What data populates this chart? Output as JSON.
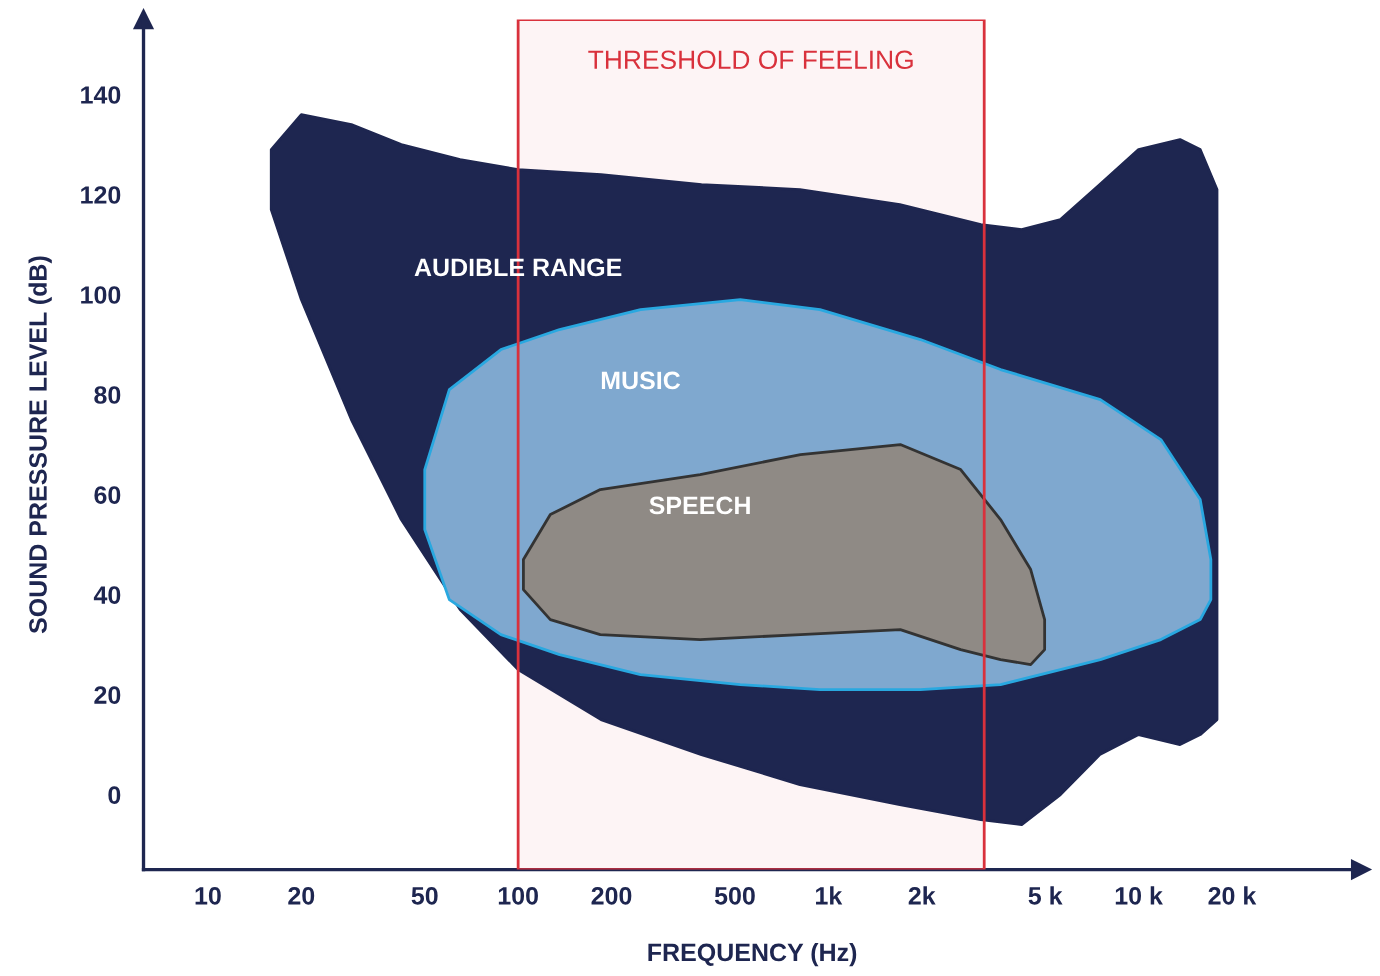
{
  "chart_data": {
    "type": "area",
    "xlabel": "FREQUENCY (Hz)",
    "ylabel": "SOUND PRESSURE LEVEL (dB)",
    "log": "x",
    "grid": false,
    "legend": false,
    "xlim": [
      6.2,
      52000
    ],
    "ylim": [
      -15,
      155
    ],
    "xticks": [
      10,
      20,
      50,
      100,
      200,
      500,
      {
        "value": 1000,
        "label": "1k"
      },
      {
        "value": 2000,
        "label": "2k"
      },
      {
        "value": 5000,
        "label": "5 k"
      },
      {
        "value": 10000,
        "label": "10 k"
      },
      {
        "value": 20000,
        "label": "20 k"
      }
    ],
    "yticks": [
      0,
      20,
      40,
      60,
      80,
      100,
      120,
      140
    ],
    "series": [
      {
        "name": "AUDIBLE RANGE",
        "color": "#1e2650",
        "x": [
          16,
          20,
          29,
          42,
          65,
          100,
          185,
          390,
          810,
          1700,
          3100,
          4200,
          5600,
          7500,
          10000,
          13600,
          15800,
          17900,
          17900,
          15800,
          13600,
          10000,
          7500,
          5600,
          4200,
          3100,
          1700,
          810,
          390,
          185,
          100,
          65,
          42,
          29,
          20,
          16
        ],
        "values": [
          129,
          136,
          134,
          130,
          127,
          125,
          124,
          122,
          121,
          118,
          114,
          113,
          115,
          122,
          129,
          131,
          129,
          121,
          15,
          12,
          10,
          12,
          8,
          0,
          -6,
          -5,
          -2,
          2,
          8,
          15,
          25,
          37,
          55,
          75,
          99,
          117
        ]
      },
      {
        "name": "MUSIC",
        "color": "#7fa8cf",
        "x": [
          50,
          60,
          88,
          136,
          248,
          520,
          940,
          1980,
          3590,
          7530,
          11800,
          15800,
          17100,
          17100,
          15800,
          11800,
          7530,
          3590,
          1980,
          940,
          520,
          248,
          136,
          88,
          60,
          50
        ],
        "values": [
          65,
          81,
          89,
          93,
          97,
          99,
          97,
          91,
          85,
          79,
          71,
          59,
          47,
          39,
          35,
          31,
          27,
          22,
          21,
          21,
          22,
          24,
          28,
          32,
          39,
          53
        ]
      },
      {
        "name": "SPEECH",
        "color": "#8f8a85",
        "x": [
          104,
          127,
          184,
          386,
          813,
          1706,
          2670,
          3590,
          4490,
          4980,
          4980,
          4490,
          3590,
          2670,
          1706,
          813,
          386,
          184,
          127,
          104
        ],
        "values": [
          47,
          56,
          61,
          64,
          68,
          70,
          65,
          55,
          45,
          35,
          29,
          26,
          27,
          29,
          33,
          32,
          31,
          32,
          35,
          41
        ]
      }
    ],
    "bands": [
      {
        "axis": "x",
        "from": 100,
        "to": 3180,
        "label": "THRESHOLD OF FEELING",
        "color": "#d9313c"
      }
    ]
  }
}
